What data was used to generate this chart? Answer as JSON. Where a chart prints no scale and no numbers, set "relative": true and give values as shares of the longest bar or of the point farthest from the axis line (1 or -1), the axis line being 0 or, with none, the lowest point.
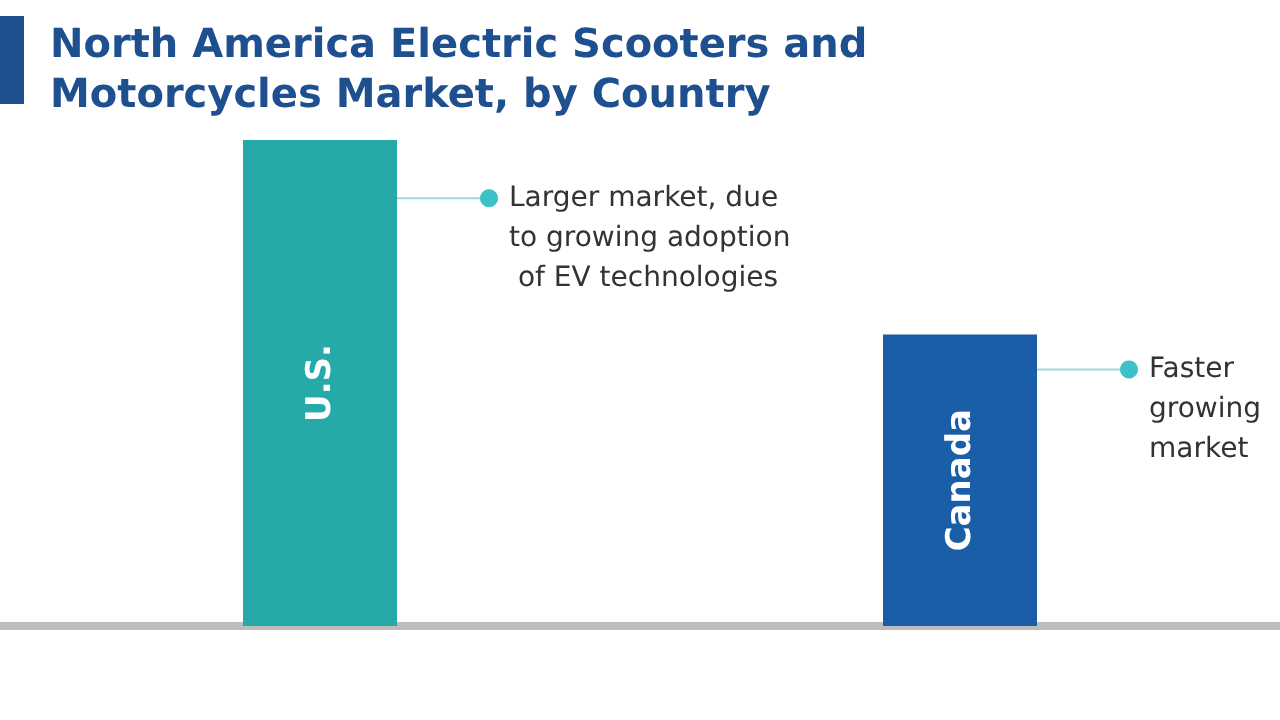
{
  "chart_data": {
    "type": "bar",
    "title": "North America Electric Scooters and Motorcycles Market, by Country",
    "categories": [
      "U.S.",
      "Canada"
    ],
    "relative": true,
    "series": [
      {
        "values": [
          1,
          0.6
        ],
        "colors": [
          "#26a9a9",
          "#1a5ea8"
        ]
      }
    ],
    "annotations": [
      "Larger market, due to growing adoption of EV technologies",
      "Faster growing market"
    ]
  }
}
